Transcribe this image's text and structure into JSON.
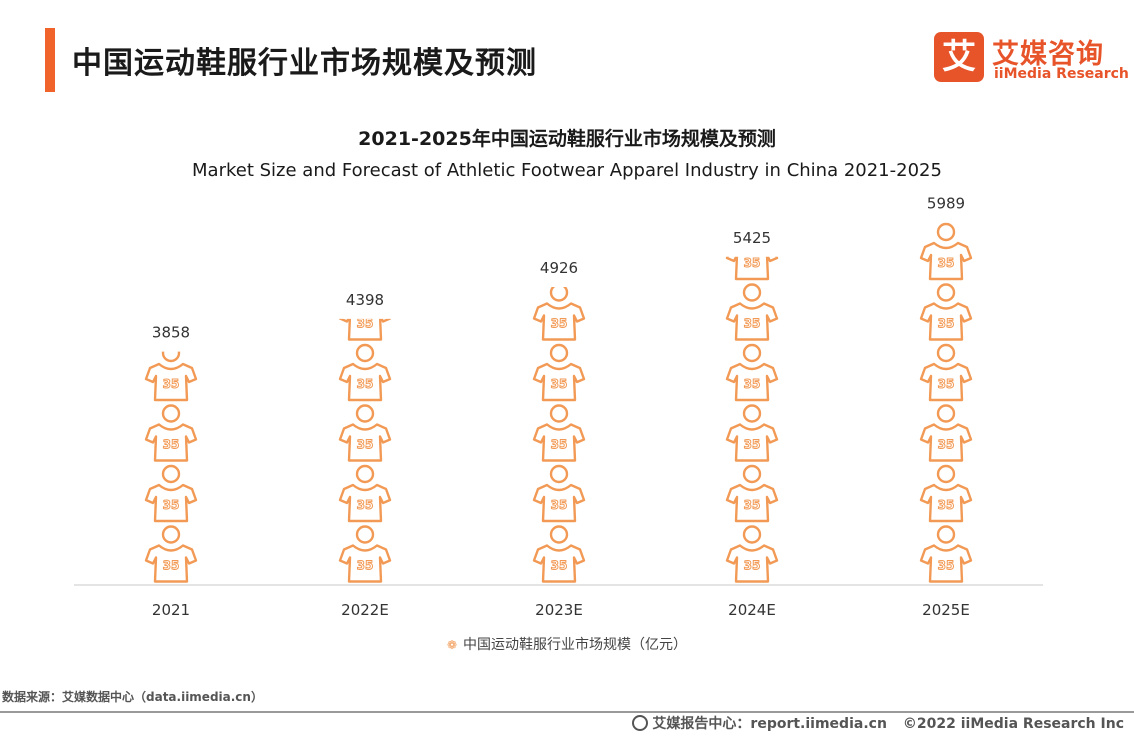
{
  "header": {
    "title": "中国运动鞋服行业市场规模及预测",
    "accent_color": "#f0632a"
  },
  "logo": {
    "mark": "艾",
    "cn": "艾媒咨询",
    "en": "iiMedia Research"
  },
  "chart_data": {
    "type": "bar",
    "title": "2021-2025年中国运动鞋服行业市场规模及预测",
    "subtitle": "Market Size and Forecast of Athletic Footwear Apparel Industry in China 2021-2025",
    "categories": [
      "2021",
      "2022E",
      "2023E",
      "2024E",
      "2025E"
    ],
    "series": [
      {
        "name": "中国运动鞋服行业市场规模（亿元）",
        "values": [
          3858,
          4398,
          4926,
          5425,
          5989
        ],
        "color": "#f29a55",
        "icon": "jersey-icon"
      }
    ],
    "icon_label": "35",
    "ylim": [
      0,
      6250
    ],
    "grid": false,
    "legend": "bottom-center"
  },
  "legend": {
    "label": "中国运动鞋服行业市场规模（亿元）",
    "icon": "jersey-icon"
  },
  "footer": {
    "source": "数据来源：艾媒数据中心（data.iimedia.cn）",
    "report_center": "艾媒报告中心：report.iimedia.cn",
    "copyright": "©2022  iiMedia Research  Inc"
  }
}
